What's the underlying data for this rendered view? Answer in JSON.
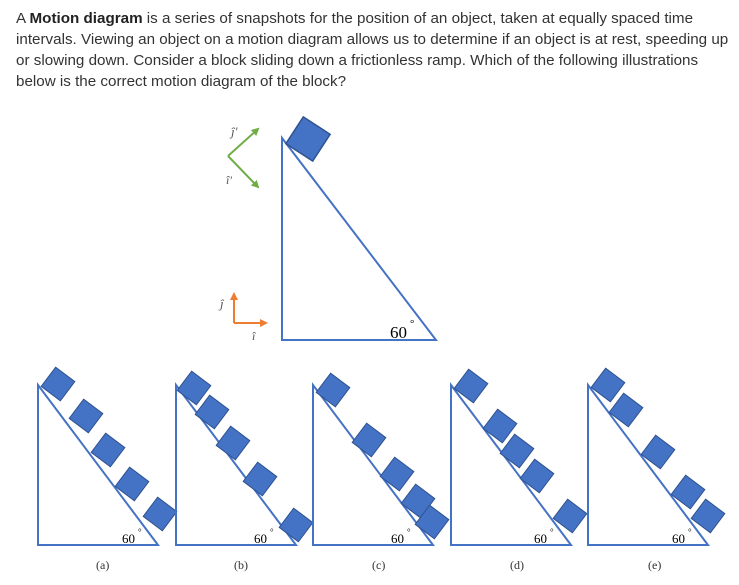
{
  "question": {
    "intro": "A ",
    "term": "Motion diagram",
    "text": " is a series of snapshots for the position of an object, taken at equally spaced time intervals. Viewing an object on a motion diagram allows us to determine if an object is at rest, speeding up or slowing down. Consider a block sliding down a frictionless ramp.  Which of the following illustrations below is the correct motion diagram of the block?"
  },
  "main_figure": {
    "angle_label": "60",
    "degree_symbol": "°",
    "axes_tilted": {
      "j_label": "ĵ'",
      "i_label": "î'"
    },
    "axes_standard": {
      "j_label": "ĵ",
      "i_label": "î"
    }
  },
  "options": [
    {
      "letter": "(a)",
      "angle_label": "60",
      "degree_symbol": "°"
    },
    {
      "letter": "(b)",
      "angle_label": "60",
      "degree_symbol": "°"
    },
    {
      "letter": "(c)",
      "angle_label": "60",
      "degree_symbol": "°"
    },
    {
      "letter": "(d)",
      "angle_label": "60",
      "degree_symbol": "°"
    },
    {
      "letter": "(e)",
      "angle_label": "60",
      "degree_symbol": "°"
    }
  ],
  "colors": {
    "ramp": "#4472C4",
    "block": "#4472C4",
    "block_outline": "#2F528F",
    "axis_tilted": "#70AD47",
    "axis_standard": "#ED7D31"
  }
}
